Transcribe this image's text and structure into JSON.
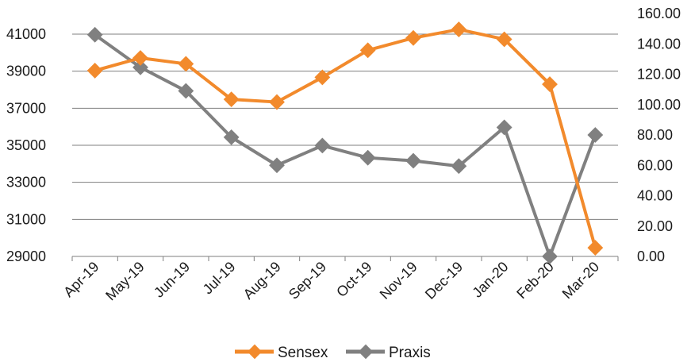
{
  "chart_data": {
    "type": "line",
    "categories": [
      "Apr-19",
      "May-19",
      "Jun-19",
      "Jul-19",
      "Aug-19",
      "Sep-19",
      "Oct-19",
      "Nov-19",
      "Dec-19",
      "Jan-20",
      "Feb-20",
      "Mar-20"
    ],
    "series": [
      {
        "name": "Sensex",
        "axis": "left",
        "color": "#f28a2c",
        "values": [
          39032,
          39714,
          39395,
          37481,
          37333,
          38667,
          40129,
          40794,
          41254,
          40723,
          38297,
          29468
        ]
      },
      {
        "name": "Praxis",
        "axis": "right",
        "color": "#808080",
        "values": [
          146.0,
          124.5,
          109.0,
          78.5,
          60.0,
          73.0,
          65.0,
          63.0,
          59.5,
          85.0,
          0.0,
          80.0
        ]
      }
    ],
    "left_axis": {
      "min": 29000,
      "max": 41000,
      "ticks": [
        29000,
        31000,
        33000,
        35000,
        37000,
        39000,
        41000
      ],
      "tick_labels": [
        "29000",
        "31000",
        "33000",
        "35000",
        "37000",
        "39000",
        "41000"
      ]
    },
    "right_axis": {
      "min": 0,
      "max": 160,
      "ticks": [
        0,
        20,
        40,
        60,
        80,
        100,
        120,
        140,
        160
      ],
      "tick_labels": [
        "0.00",
        "20.00",
        "40.00",
        "60.00",
        "80.00",
        "100.00",
        "120.00",
        "140.00",
        "160.00"
      ]
    },
    "title": "",
    "xlabel": "",
    "ylabel": "",
    "grid": "horizontal",
    "legend_position": "bottom-center"
  },
  "legend": {
    "sensex_label": "Sensex",
    "praxis_label": "Praxis"
  }
}
